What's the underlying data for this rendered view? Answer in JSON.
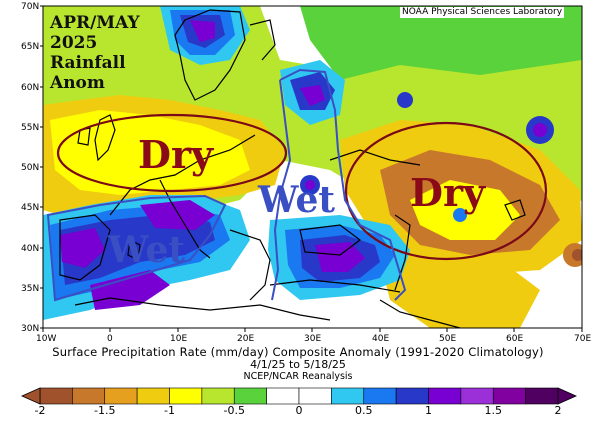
{
  "title": {
    "line1": "APR/MAY",
    "line2": "2025",
    "line3": "Rainfall",
    "line4": "Anom"
  },
  "credit": "NOAA Physical Sciences Laboratory",
  "caption": {
    "line1": "Surface Precipitation Rate (mm/day) Composite Anomaly (1991-2020 Climatology)",
    "line2": "4/1/25  to 5/18/25",
    "line3": "NCEP/NCAR Reanalysis"
  },
  "latitude_labels": [
    "70N",
    "65N",
    "60N",
    "55N",
    "50N",
    "45N",
    "40N",
    "35N",
    "30N"
  ],
  "longitude_labels": [
    "10W",
    "0",
    "10E",
    "20E",
    "30E",
    "40E",
    "50E",
    "60E",
    "70E"
  ],
  "annotations": {
    "dry_left": "Dry",
    "dry_right": "Dry",
    "wet_center": "Wet",
    "wet_left": "Wet"
  },
  "colorbar": {
    "tick_labels": [
      "-2",
      "-1.5",
      "-1",
      "-0.5",
      "0",
      "0.5",
      "1",
      "1.5",
      "2"
    ],
    "colors": [
      "#a0522d",
      "#c8782a",
      "#e6a020",
      "#f0cc10",
      "#ffff00",
      "#b8e62e",
      "#5ad23c",
      "#ffffff",
      "#ffffff",
      "#30c8f0",
      "#1a78f0",
      "#2838c8",
      "#7800d2",
      "#9b30d8",
      "#8000a0",
      "#500060"
    ],
    "units": "mm/day"
  },
  "map_colors": {
    "dry_strong": "#c8782a",
    "dry": "#f0cc10",
    "yellow": "#ffff00",
    "light_green": "#b8e62e",
    "green": "#5ad23c",
    "cyan": "#30c8f0",
    "blue": "#1a78f0",
    "navy": "#2838c8",
    "purple": "#7800d2",
    "dark_purple": "#8000a0"
  }
}
